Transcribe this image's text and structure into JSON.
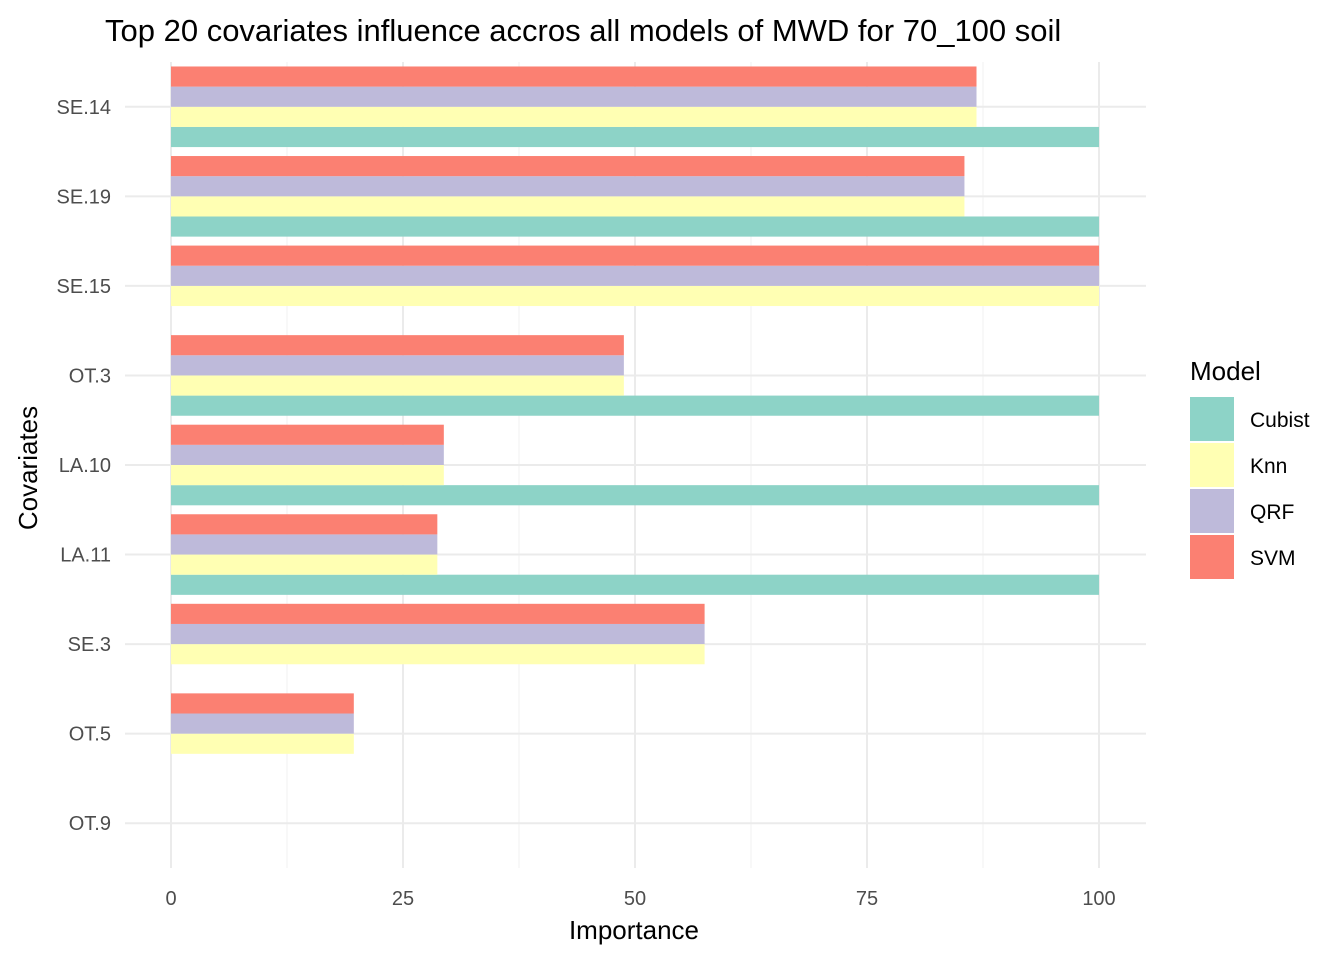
{
  "chart_data": {
    "type": "bar",
    "orientation": "horizontal",
    "title": "Top 20 covariates influence accros all models of MWD for 70_100 soil",
    "xlabel": "Importance",
    "ylabel": "Covariates",
    "xlim": [
      0,
      100
    ],
    "xticks": [
      "0",
      "25",
      "50",
      "75",
      "100"
    ],
    "grid": true,
    "legend": {
      "title": "Model",
      "placement": "right"
    },
    "categories": [
      "SE.14",
      "SE.19",
      "SE.15",
      "OT.3",
      "LA.10",
      "LA.11",
      "SE.3",
      "OT.5",
      "OT.9"
    ],
    "series": [
      {
        "name": "Cubist",
        "color": "#8dd3c7",
        "values": [
          100,
          100,
          0,
          100,
          100,
          100,
          0,
          0,
          0
        ]
      },
      {
        "name": "Knn",
        "color": "#ffffb3",
        "values": [
          86.8,
          85.5,
          100,
          48.8,
          29.4,
          28.7,
          57.5,
          19.7,
          0
        ]
      },
      {
        "name": "QRF",
        "color": "#bebada",
        "values": [
          86.8,
          85.5,
          100,
          48.8,
          29.4,
          28.7,
          57.5,
          19.7,
          0
        ]
      },
      {
        "name": "SVM",
        "color": "#fb8072",
        "values": [
          86.8,
          85.5,
          100,
          48.8,
          29.4,
          28.7,
          57.5,
          19.7,
          0
        ]
      }
    ]
  }
}
